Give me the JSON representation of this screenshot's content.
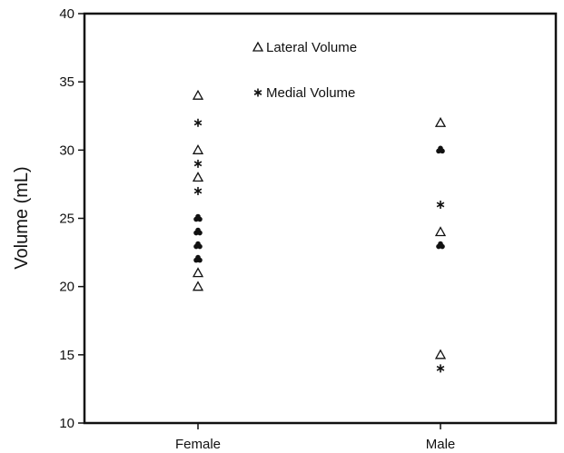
{
  "chart_data": {
    "type": "scatter",
    "title": "",
    "xlabel": "",
    "ylabel": "Volume (mL)",
    "categories": [
      "Female",
      "Male"
    ],
    "ylim": [
      10,
      40
    ],
    "yticks": [
      10,
      15,
      20,
      25,
      30,
      35,
      40
    ],
    "grid": false,
    "legend_position": "top-center",
    "series": [
      {
        "name": "Lateral Volume",
        "marker": "open-triangle",
        "points": [
          {
            "category": "Female",
            "y": 34
          },
          {
            "category": "Female",
            "y": 30
          },
          {
            "category": "Female",
            "y": 28
          },
          {
            "category": "Female",
            "y": 21
          },
          {
            "category": "Female",
            "y": 20
          },
          {
            "category": "Male",
            "y": 32
          },
          {
            "category": "Male",
            "y": 24
          },
          {
            "category": "Male",
            "y": 15
          }
        ]
      },
      {
        "name": "Medial Volume",
        "marker": "asterisk",
        "points": [
          {
            "category": "Female",
            "y": 32
          },
          {
            "category": "Female",
            "y": 29
          },
          {
            "category": "Female",
            "y": 27
          },
          {
            "category": "Male",
            "y": 26
          },
          {
            "category": "Male",
            "y": 14
          }
        ]
      },
      {
        "name": "",
        "marker": "overlap-filled",
        "points": [
          {
            "category": "Female",
            "y": 25
          },
          {
            "category": "Female",
            "y": 24
          },
          {
            "category": "Female",
            "y": 23
          },
          {
            "category": "Female",
            "y": 22
          },
          {
            "category": "Male",
            "y": 30
          },
          {
            "category": "Male",
            "y": 23
          }
        ]
      }
    ]
  }
}
